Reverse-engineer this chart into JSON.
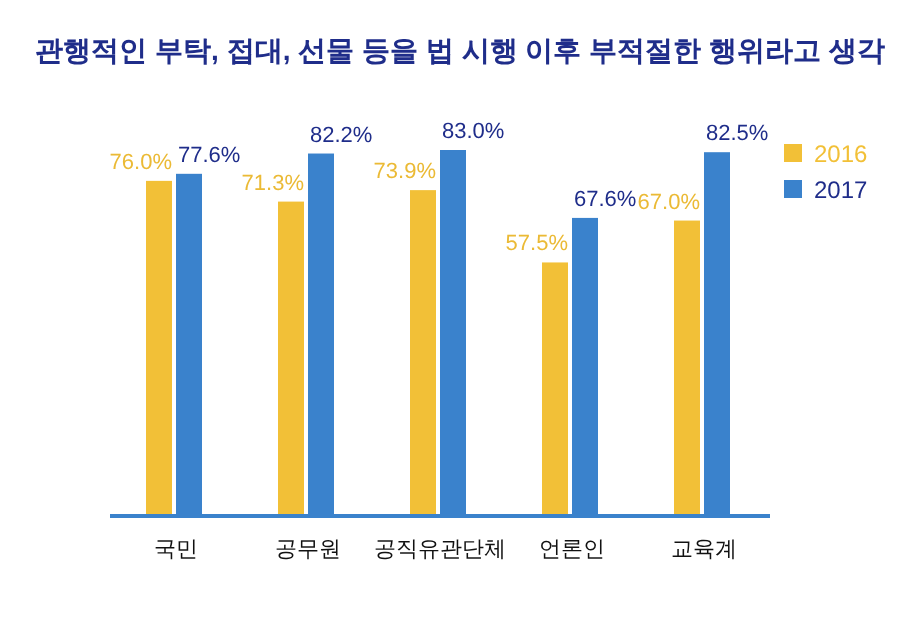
{
  "chart_data": {
    "type": "bar",
    "title": "관행적인 부탁, 접대, 선물 등을 법 시행 이후 부적절한 행위라고 생각",
    "categories": [
      "국민",
      "공무원",
      "공직유관단체",
      "언론인",
      "교육계"
    ],
    "legend": "right",
    "series": [
      {
        "name": "2016",
        "color": "#f2c037",
        "values": [
          76.0,
          71.3,
          73.9,
          57.5,
          67.0
        ],
        "value_labels": [
          "76.0%",
          "71.3%",
          "73.9%",
          "57.5%",
          "67.0%"
        ]
      },
      {
        "name": "2017",
        "color": "#3a82cc",
        "values": [
          77.6,
          82.2,
          83.0,
          67.6,
          82.5
        ],
        "value_labels": [
          "77.6%",
          "82.2%",
          "83.0%",
          "67.6%",
          "82.5%"
        ]
      }
    ]
  }
}
